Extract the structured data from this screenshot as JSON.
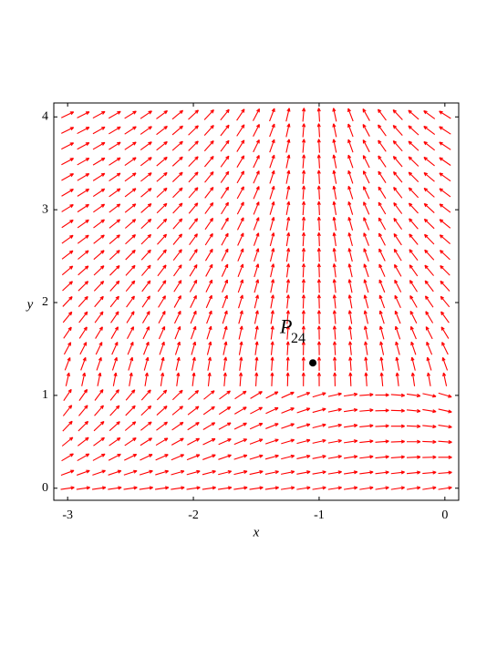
{
  "chart_data": {
    "type": "scatter",
    "xlabel": "x",
    "ylabel": "y",
    "xlim": [
      -3.11,
      0.11
    ],
    "ylim": [
      -0.13,
      4.15
    ],
    "xticks": [
      -3,
      -2,
      -1,
      0
    ],
    "yticks": [
      0,
      1,
      2,
      3,
      4
    ],
    "x": [
      -1.05
    ],
    "y": [
      1.35
    ],
    "color": "#000000",
    "field_color": "#ff0000",
    "annotation": {
      "text": "P",
      "subscript": "24"
    }
  }
}
